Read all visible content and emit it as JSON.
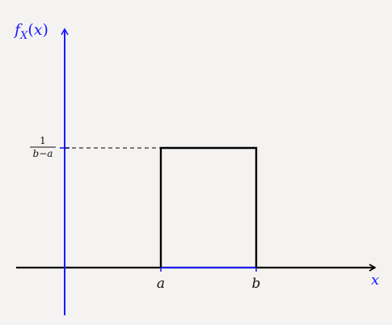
{
  "chart_data": {
    "type": "line",
    "ylabel": "f_X(x)",
    "xlabel": "x",
    "x_ticks": [
      "a",
      "b"
    ],
    "y_tick": {
      "numerator": "1",
      "denominator": "b−a"
    },
    "series": [
      {
        "name": "",
        "x": [
          "a",
          "a",
          "b",
          "b"
        ],
        "y": [
          0,
          "1/(b−a)",
          "1/(b−a)",
          0
        ]
      }
    ],
    "annotations": [
      "dashed reference line at height 1/(b−a) from y-axis to x = a",
      "segment [a, b] on x-axis highlighted in blue"
    ],
    "grid": false,
    "colors": {
      "axis": "#1a1aff",
      "x_axis": "#000000",
      "curve": "#000000",
      "highlight": "#1a1aff"
    }
  }
}
